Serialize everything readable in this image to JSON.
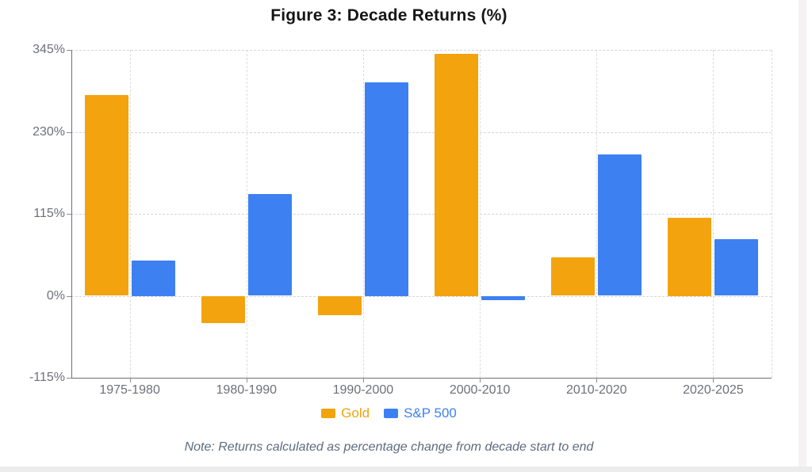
{
  "chart_data": {
    "type": "bar",
    "title": "Figure 3: Decade Returns (%)",
    "categories": [
      "1975-1980",
      "1980-1990",
      "1990-2000",
      "2000-2010",
      "2010-2020",
      "2020-2025"
    ],
    "series": [
      {
        "name": "Gold",
        "color": "#F3A30D",
        "values": [
          282,
          -38,
          -27,
          340,
          54,
          110
        ]
      },
      {
        "name": "S&P 500",
        "color": "#3D80F2",
        "values": [
          50,
          143,
          300,
          -6,
          198,
          79
        ]
      }
    ],
    "xlabel": "",
    "ylabel": "",
    "ylim": [
      -115,
      345
    ],
    "yticks": [
      -115,
      0,
      115,
      230,
      345
    ],
    "ytick_labels": [
      "-115%",
      "0%",
      "115%",
      "230%",
      "345%"
    ],
    "grid": "dashed horizontal and vertical gridlines",
    "legend_position": "bottom",
    "note": "Note: Returns calculated as percentage change from decade start to end"
  },
  "colors": {
    "gold_series": "#F3A30D",
    "sp500_series": "#3D80F2",
    "axis_line": "#6E7079",
    "tick_label": "#6E7079",
    "gridline": "#D6D6D6",
    "title_text": "#161616",
    "note_text": "#5D6B7B"
  }
}
